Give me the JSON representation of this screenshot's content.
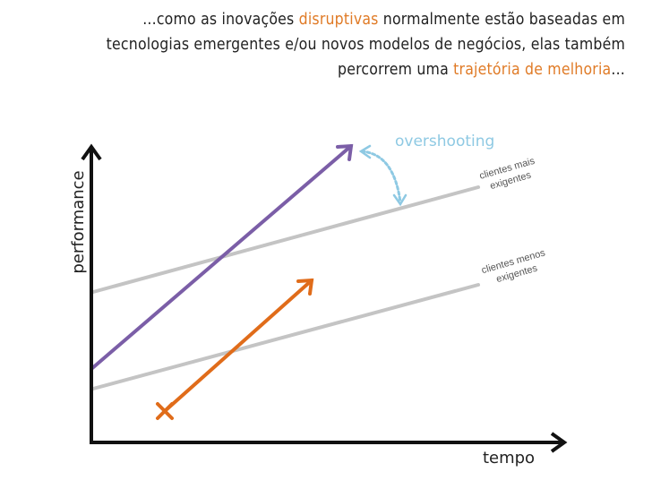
{
  "title": {
    "line1_pre": "...como as inovações ",
    "line1_highlight": "disruptivas",
    "line1_post": " normalmente estão baseadas em",
    "line2": "tecnologias emergentes e/ou novos modelos de negócios, elas também",
    "line3_pre": "percorrem uma ",
    "line3_highlight": "trajetória de melhoria",
    "line3_post": "...",
    "highlight_color": "#e07b27"
  },
  "axes": {
    "y_label": "performance",
    "x_label": "tempo"
  },
  "annotations": {
    "overshooting": "overshooting",
    "high_demand_line1": "clientes mais",
    "high_demand_line2": "exigentes",
    "low_demand_line1": "clientes menos",
    "low_demand_line2": "exigentes"
  },
  "colors": {
    "axis": "#111111",
    "demand_lines": "#c4c4c4",
    "sustaining_trajectory": "#7b5ea7",
    "disruptive_trajectory": "#e06c1a",
    "overshooting": "#8ec9e3"
  }
}
